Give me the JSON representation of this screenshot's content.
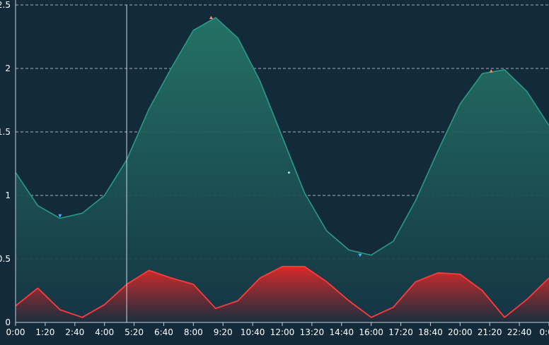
{
  "colors": {
    "background": "#132a3b",
    "tide_line": "#2a9a88",
    "tide_fill_top": "#257567",
    "wave_line": "#ff3a3a",
    "wave_fill_top": "#d82a2a",
    "grid": "#d8dee3",
    "text": "#ffffff",
    "marker_high": "#ff8c6b",
    "marker_low": "#4fb8ff"
  },
  "chart_data": {
    "type": "area",
    "title": "",
    "xlabel": "",
    "ylabel": "",
    "ylim": [
      0,
      2.5
    ],
    "yticks": [
      "0",
      "0.5",
      "1",
      "1.5",
      "2",
      "2.5"
    ],
    "xticks": [
      "0:00",
      "1:20",
      "2:40",
      "4:00",
      "5:20",
      "6:40",
      "8:00",
      "9:20",
      "10:40",
      "12:00",
      "13:20",
      "14:40",
      "16:00",
      "17:20",
      "18:40",
      "20:00",
      "21:20",
      "22:40",
      "0:00"
    ],
    "grid": true,
    "legend": "none",
    "x_hours": [
      0,
      1,
      2,
      3,
      4,
      5,
      6,
      7,
      8,
      9,
      10,
      11,
      12,
      13,
      14,
      15,
      16,
      17,
      18,
      19,
      20,
      21,
      22,
      23,
      24
    ],
    "series": [
      {
        "values": [
          1.18,
          0.92,
          0.82,
          0.86,
          1.0,
          1.28,
          1.68,
          2.0,
          2.3,
          2.4,
          2.24,
          1.9,
          1.46,
          1.02,
          0.72,
          0.57,
          0.53,
          0.64,
          0.96,
          1.35,
          1.72,
          1.96,
          1.99,
          1.82,
          1.55
        ]
      },
      {
        "values": [
          0.13,
          0.27,
          0.1,
          0.04,
          0.14,
          0.3,
          0.41,
          0.35,
          0.3,
          0.11,
          0.17,
          0.35,
          0.44,
          0.44,
          0.32,
          0.17,
          0.04,
          0.12,
          0.32,
          0.39,
          0.38,
          0.25,
          0.04,
          0.18,
          0.35
        ]
      }
    ],
    "markers": [
      {
        "kind": "low",
        "x": 2,
        "y": 0.84
      },
      {
        "kind": "high",
        "x": 8.8,
        "y": 2.4
      },
      {
        "kind": "point",
        "x": 12.3,
        "y": 1.18
      },
      {
        "kind": "low",
        "x": 15.5,
        "y": 0.53
      },
      {
        "kind": "high",
        "x": 21.4,
        "y": 1.98
      }
    ],
    "cursor_x": 5
  }
}
